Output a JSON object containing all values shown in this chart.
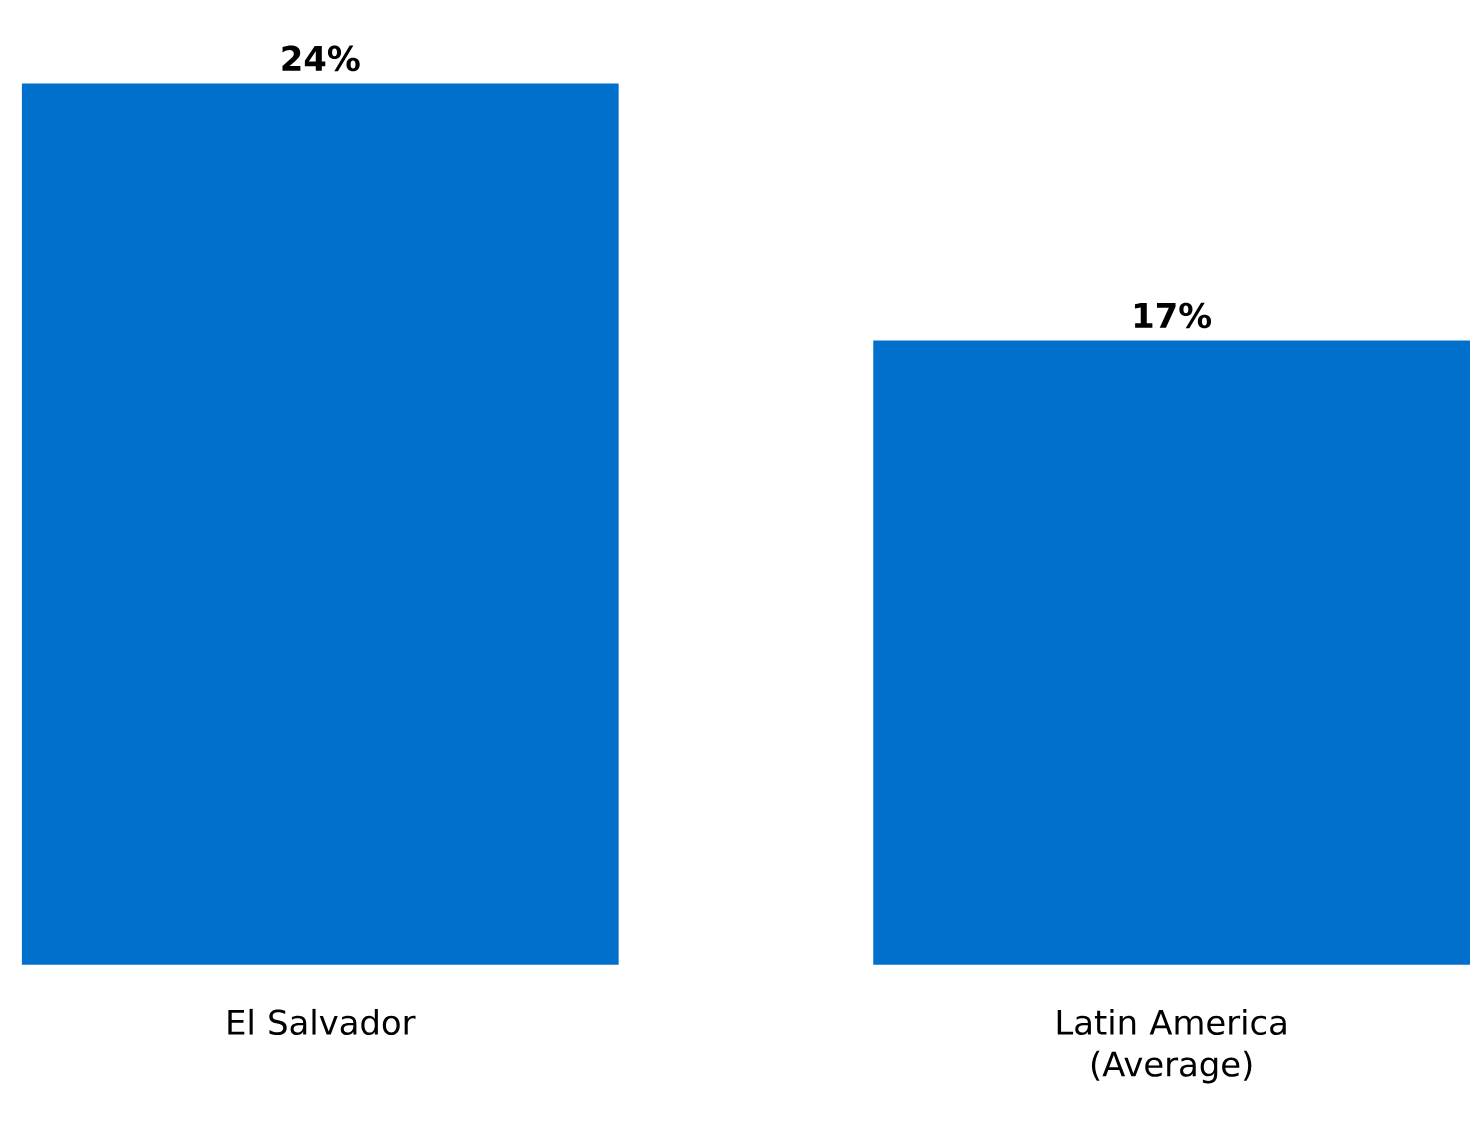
{
  "chart_data": {
    "type": "bar",
    "categories": [
      "El Salvador",
      "Latin America (Average)"
    ],
    "values": [
      24,
      17
    ],
    "color": "#0070cc",
    "value_labels": [
      "24%",
      "17%"
    ]
  }
}
